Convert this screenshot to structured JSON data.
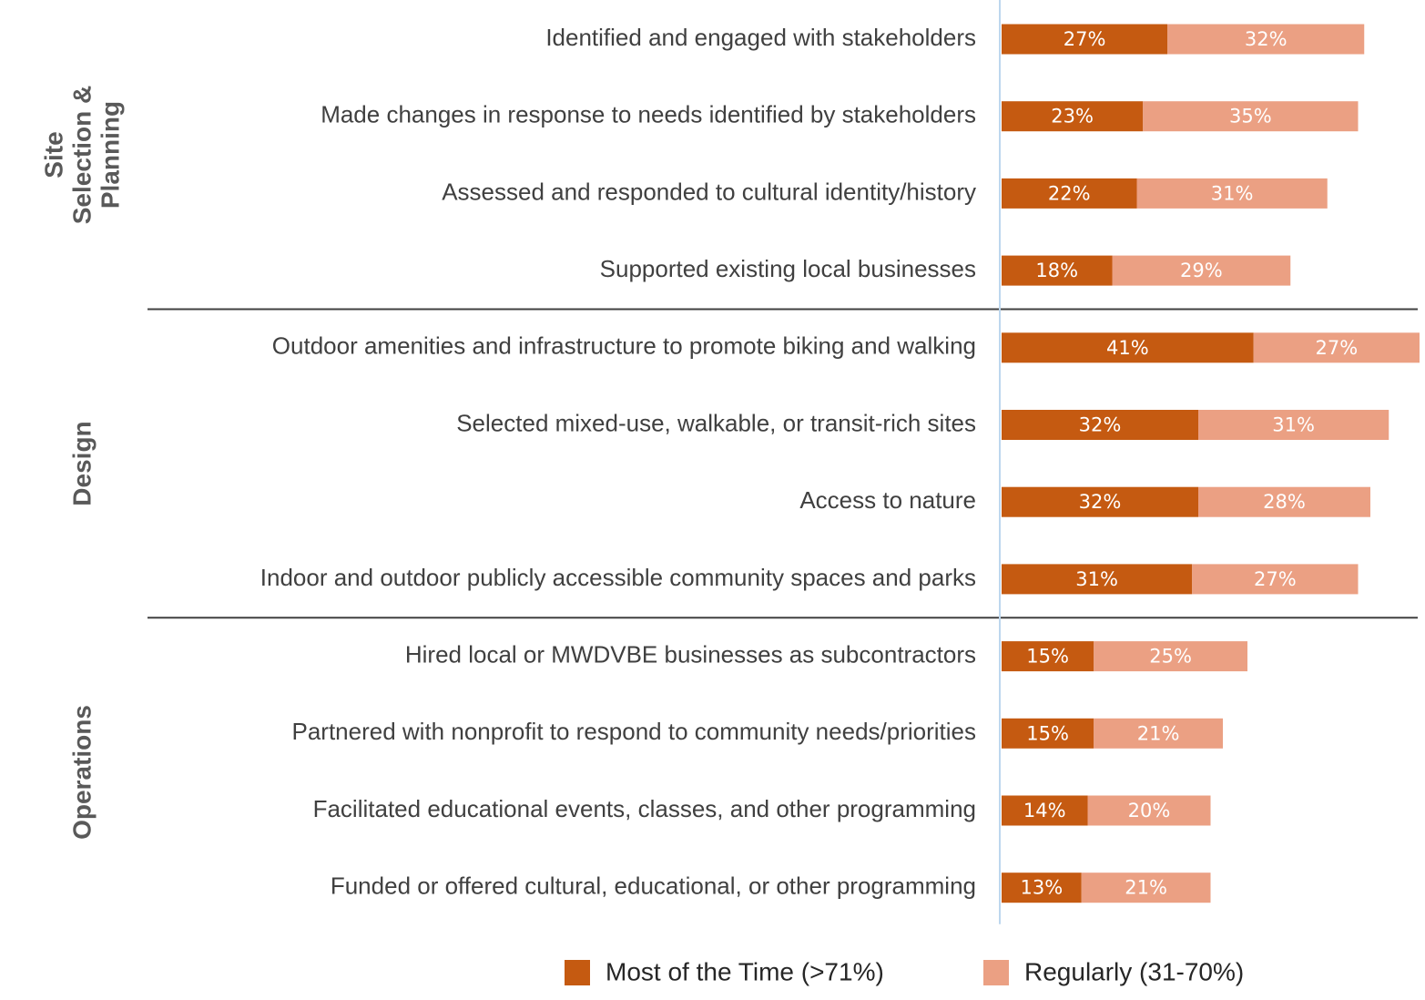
{
  "chart_data": {
    "type": "bar",
    "orientation": "horizontal",
    "stacked": true,
    "groups": [
      {
        "name": "Site Selection & Planning",
        "categories": [
          "Identified and engaged with stakeholders",
          "Made changes in response to needs identified by stakeholders",
          "Assessed and responded to cultural identity/history",
          "Supported existing local businesses"
        ]
      },
      {
        "name": "Design",
        "categories": [
          "Outdoor amenities and infrastructure to promote biking and walking",
          "Selected mixed-use, walkable, or transit-rich sites",
          "Access to nature",
          "Indoor and outdoor publicly accessible community spaces and parks"
        ]
      },
      {
        "name": "Operations",
        "categories": [
          "Hired local or MWDVBE businesses as subcontractors",
          "Partnered with nonprofit to respond to community needs/priorities",
          "Facilitated educational events, classes, and other programming",
          "Funded or offered cultural, educational, or other programming"
        ]
      }
    ],
    "series": [
      {
        "name": "Most of the Time (>71%)",
        "color": "#c55a11",
        "values": [
          27,
          23,
          22,
          18,
          41,
          32,
          32,
          31,
          15,
          15,
          14,
          13
        ],
        "value_labels": [
          "27%",
          "23%",
          "22%",
          "18%",
          "41%",
          "32%",
          "32%",
          "31%",
          "15%",
          "15%",
          "14%",
          "13%"
        ]
      },
      {
        "name": "Regularly (31-70%)",
        "color": "#eba083",
        "values": [
          32,
          35,
          31,
          29,
          27,
          31,
          28,
          27,
          25,
          21,
          20,
          21
        ],
        "value_labels": [
          "32%",
          "35%",
          "31%",
          "29%",
          "27%",
          "31%",
          "28%",
          "27%",
          "25%",
          "21%",
          "20%",
          "21%"
        ]
      }
    ],
    "legend": "bottom"
  }
}
